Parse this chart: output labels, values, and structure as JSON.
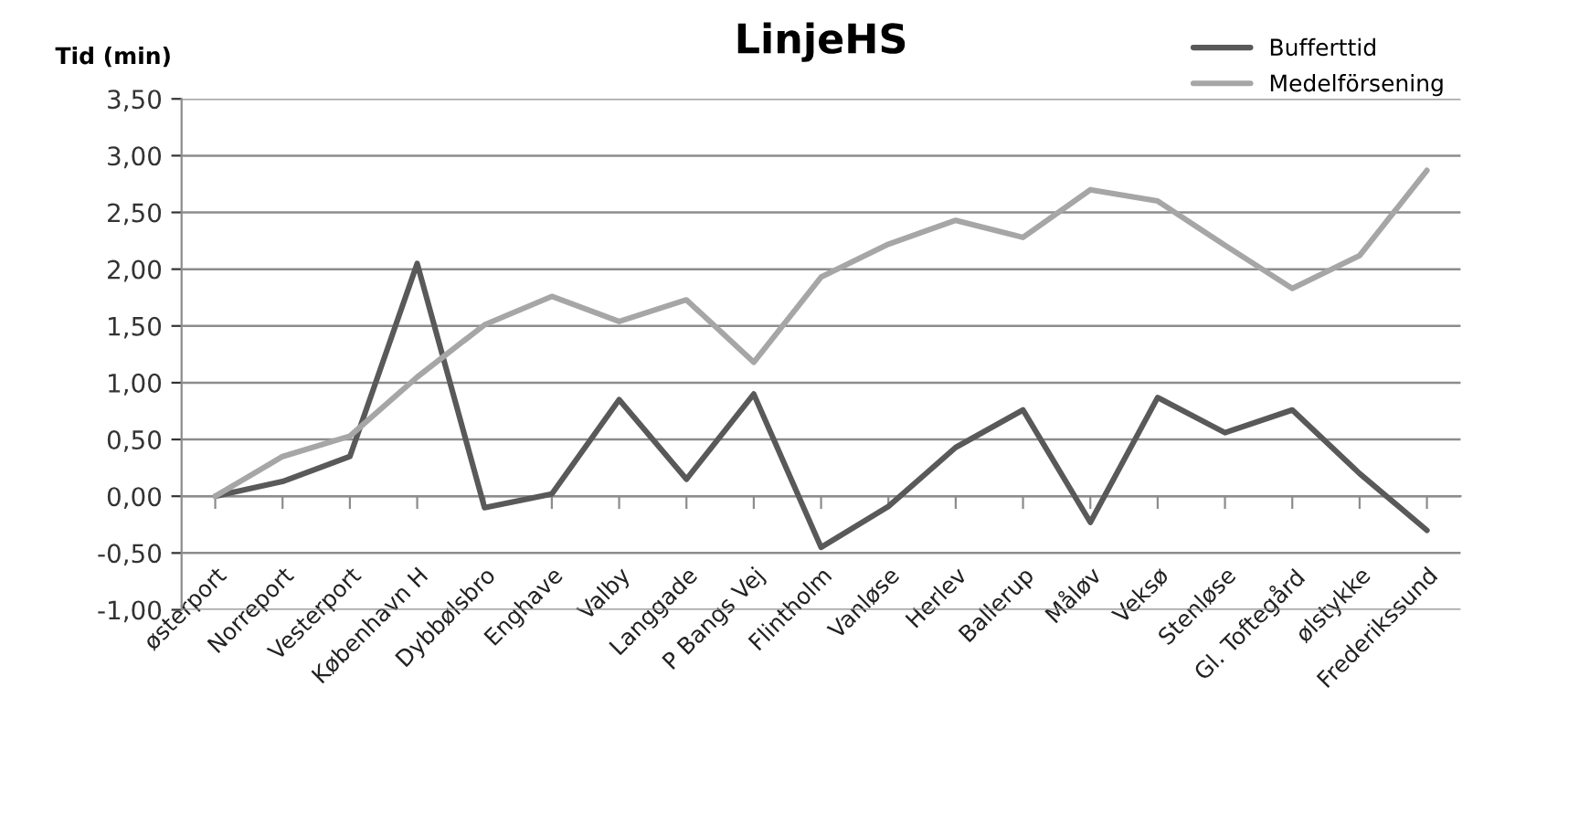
{
  "chart_data": {
    "type": "line",
    "title": "LinjeHS",
    "ylabel": "Tid (min)",
    "categories": [
      "østerport",
      "Norreport",
      "Vesterport",
      "København H",
      "Dybbølsbro",
      "Enghave",
      "Valby",
      "Langgade",
      "P Bangs Vej",
      "Flintholm",
      "Vanløse",
      "Herlev",
      "Ballerup",
      "Måløv",
      "Veksø",
      "Stenløse",
      "Gl. Toftegård",
      "ølstykke",
      "Frederikssund"
    ],
    "series": [
      {
        "name": "Bufferttid",
        "color": "#595959",
        "values": [
          0,
          0.13,
          0.35,
          2.05,
          -0.1,
          0.02,
          0.85,
          0.15,
          0.9,
          -0.45,
          -0.09,
          0.43,
          0.76,
          -0.23,
          0.87,
          0.56,
          0.76,
          0.2,
          -0.3
        ]
      },
      {
        "name": "Medelförsening",
        "color": "#a6a6a6",
        "values": [
          0,
          0.35,
          0.53,
          1.05,
          1.51,
          1.76,
          1.54,
          1.73,
          1.18,
          1.93,
          2.22,
          2.43,
          2.28,
          2.7,
          2.6,
          2.21,
          1.83,
          2.12,
          2.87
        ]
      }
    ],
    "ylim": [
      -1,
      3.5
    ],
    "yticks": [
      {
        "value": -1,
        "label": "-1,00"
      },
      {
        "value": -0.5,
        "label": "-0,50"
      },
      {
        "value": 0,
        "label": "0,00"
      },
      {
        "value": 0.5,
        "label": "0,50"
      },
      {
        "value": 1,
        "label": "1,00"
      },
      {
        "value": 1.5,
        "label": "1,50"
      },
      {
        "value": 2,
        "label": "2,00"
      },
      {
        "value": 2.5,
        "label": "2,50"
      },
      {
        "value": 3,
        "label": "3,00"
      },
      {
        "value": 3.5,
        "label": "3,50"
      }
    ],
    "grid": "y",
    "legend": "top right",
    "marker": "none",
    "line_style": "solid"
  }
}
